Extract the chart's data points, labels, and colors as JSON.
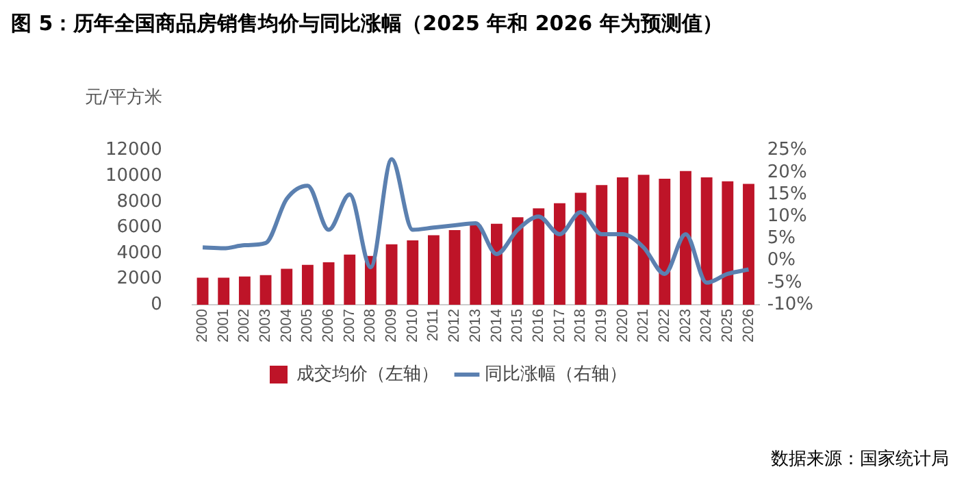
{
  "chart_data": {
    "type": "bar",
    "title": "图 5：历年全国商品房销售均价与同比涨幅（2025 年和 2026 年为预测值）",
    "ylabel": "元/平方米",
    "annotations": [
      "数据来源：国家统计局"
    ],
    "categories": [
      "2000",
      "2001",
      "2002",
      "2003",
      "2004",
      "2005",
      "2006",
      "2007",
      "2008",
      "2009",
      "2010",
      "2011",
      "2012",
      "2013",
      "2014",
      "2015",
      "2016",
      "2017",
      "2018",
      "2019",
      "2020",
      "2021",
      "2022",
      "2023",
      "2024",
      "2025",
      "2026"
    ],
    "series": [
      {
        "name": "成交均价（左轴）",
        "color": "#be1428",
        "values": [
          2100,
          2100,
          2200,
          2300,
          2800,
          3100,
          3300,
          3900,
          3800,
          4700,
          5000,
          5400,
          5800,
          6200,
          6300,
          6800,
          7500,
          7900,
          8700,
          9300,
          9900,
          10100,
          9800,
          10400,
          9900,
          9600,
          9400
        ]
      },
      {
        "name": "同比涨幅（右轴）",
        "type": "line",
        "axis": "y2",
        "color": "#5b80b0",
        "values": [
          3,
          2.8,
          3.5,
          4,
          14,
          17,
          7,
          15,
          -1.5,
          23,
          7,
          7.5,
          8,
          8.5,
          1.5,
          7,
          10,
          6,
          11,
          6,
          6,
          3,
          -3,
          6,
          -5,
          -3,
          -2
        ]
      }
    ],
    "ylim": [
      0,
      12000
    ],
    "yticks": [
      0,
      2000,
      4000,
      6000,
      8000,
      10000,
      12000
    ],
    "y2lim": [
      -10,
      25
    ],
    "y2ticks": [
      {
        "value": -10,
        "label": "-10%"
      },
      {
        "value": -5,
        "label": "-5%"
      },
      {
        "value": 0,
        "label": "0%"
      },
      {
        "value": 5,
        "label": "5%"
      },
      {
        "value": 10,
        "label": "10%"
      },
      {
        "value": 15,
        "label": "15%"
      },
      {
        "value": 20,
        "label": "20%"
      },
      {
        "value": 25,
        "label": "25%"
      }
    ],
    "grid": false,
    "legend": "bottom",
    "marker": "none",
    "line_style": "solid"
  }
}
